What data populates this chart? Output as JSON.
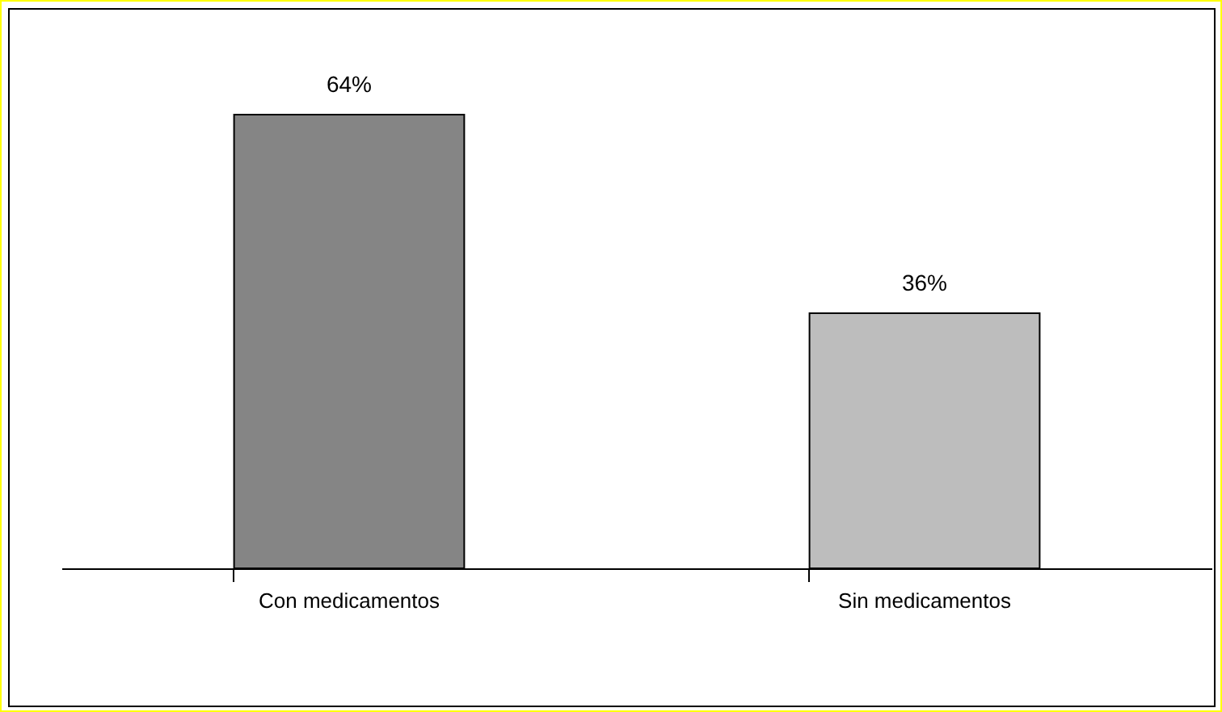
{
  "chart_data": {
    "type": "bar",
    "categories": [
      "Con medicamentos",
      "Sin medicamentos"
    ],
    "values": [
      64,
      36
    ],
    "colors": [
      "#858585",
      "#bdbdbd"
    ],
    "value_labels": [
      "64%",
      "36%"
    ],
    "grid": false
  }
}
